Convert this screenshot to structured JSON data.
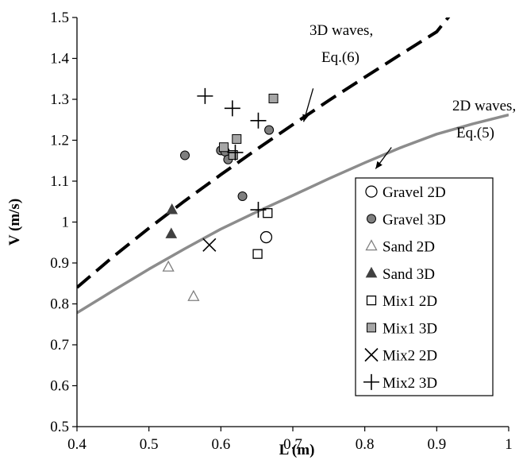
{
  "chart_data": {
    "type": "scatter",
    "xlabel": "L (m)",
    "ylabel": "V (m/s)",
    "xlim": [
      0.4,
      1.0
    ],
    "ylim": [
      0.5,
      1.5
    ],
    "x_ticks": [
      "0.4",
      "0.5",
      "0.6",
      "0.7",
      "0.8",
      "0.9",
      "1"
    ],
    "y_ticks": [
      "0.5",
      "0.6",
      "0.7",
      "0.8",
      "0.9",
      "1",
      "1.1",
      "1.2",
      "1.3",
      "1.4",
      "1.5"
    ],
    "grid": false,
    "legend_position": "right",
    "series": [
      {
        "name": "Gravel 2D",
        "marker": "open-circle",
        "color": "#000000",
        "points": [
          [
            0.663,
            0.963
          ]
        ]
      },
      {
        "name": "Gravel 3D",
        "marker": "filled-circle",
        "color": "#7f7f7f",
        "points": [
          [
            0.55,
            1.163
          ],
          [
            0.6,
            1.175
          ],
          [
            0.606,
            1.172
          ],
          [
            0.61,
            1.153
          ],
          [
            0.63,
            1.063
          ],
          [
            0.667,
            1.225
          ]
        ]
      },
      {
        "name": "Sand 2D",
        "marker": "open-triangle",
        "color": "#7f7f7f",
        "points": [
          [
            0.527,
            0.89
          ],
          [
            0.562,
            0.818
          ]
        ]
      },
      {
        "name": "Sand 3D",
        "marker": "filled-triangle",
        "color": "#404040",
        "points": [
          [
            0.532,
            1.03
          ],
          [
            0.531,
            0.971
          ]
        ]
      },
      {
        "name": "Mix1 2D",
        "marker": "open-square",
        "color": "#000000",
        "points": [
          [
            0.651,
            0.922
          ],
          [
            0.665,
            1.022
          ]
        ]
      },
      {
        "name": "Mix1 3D",
        "marker": "filled-square",
        "color": "#a6a6a6",
        "points": [
          [
            0.604,
            1.183
          ],
          [
            0.617,
            1.164
          ],
          [
            0.622,
            1.203
          ],
          [
            0.673,
            1.302
          ]
        ]
      },
      {
        "name": "Mix2 2D",
        "marker": "x-cross",
        "color": "#000000",
        "points": [
          [
            0.584,
            0.944
          ]
        ]
      },
      {
        "name": "Mix2 3D",
        "marker": "plus",
        "color": "#000000",
        "points": [
          [
            0.578,
            1.308
          ],
          [
            0.616,
            1.278
          ],
          [
            0.62,
            1.17
          ],
          [
            0.652,
            1.248
          ],
          [
            0.652,
            1.03
          ]
        ]
      }
    ],
    "curves": [
      {
        "name": "3D waves, Eq.(6)",
        "style": "dashed",
        "color": "#000000",
        "x": [
          0.4,
          0.45,
          0.5,
          0.55,
          0.6,
          0.65,
          0.7,
          0.75,
          0.8,
          0.85,
          0.9,
          0.925
        ],
        "y": [
          0.84,
          0.915,
          0.985,
          1.052,
          1.116,
          1.178,
          1.238,
          1.297,
          1.354,
          1.41,
          1.465,
          1.52
        ]
      },
      {
        "name": "2D waves, Eq.(5)",
        "style": "solid",
        "color": "#8c8c8c",
        "x": [
          0.4,
          0.45,
          0.5,
          0.55,
          0.6,
          0.65,
          0.7,
          0.75,
          0.8,
          0.85,
          0.9,
          0.95,
          1.0
        ],
        "y": [
          0.778,
          0.832,
          0.885,
          0.935,
          0.983,
          1.025,
          1.065,
          1.106,
          1.145,
          1.182,
          1.215,
          1.24,
          1.262
        ]
      }
    ],
    "annotations": [
      {
        "lines": [
          "3D waves,",
          "Eq.(6)"
        ],
        "arrow_to": [
          0.715,
          1.245
        ]
      },
      {
        "lines": [
          "2D waves,",
          "Eq.(5)"
        ],
        "arrow_to": [
          0.815,
          1.13
        ]
      }
    ]
  }
}
